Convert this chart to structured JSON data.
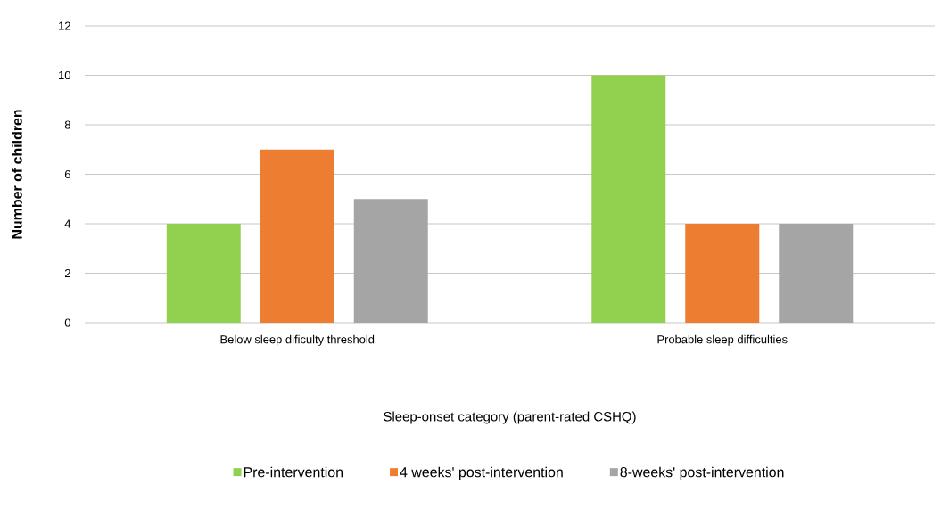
{
  "chart_data": {
    "type": "bar",
    "xlabel": "Sleep-onset category (parent-rated CSHQ)",
    "ylabel": "Number of children",
    "categories": [
      "Below sleep dificulty threshold",
      "Probable sleep difficulties"
    ],
    "series": [
      {
        "name": "Pre-intervention",
        "color": "#92d050",
        "values": [
          4,
          10
        ]
      },
      {
        "name": "4 weeks' post-intervention",
        "color": "#ed7d31",
        "values": [
          7,
          4
        ]
      },
      {
        "name": "8-weeks' post-intervention",
        "color": "#a5a5a5",
        "values": [
          5,
          4
        ]
      }
    ],
    "ylim": [
      0,
      12
    ],
    "yticks": [
      0,
      2,
      4,
      6,
      8,
      10,
      12
    ],
    "grid": "y",
    "legend": "bottom"
  }
}
